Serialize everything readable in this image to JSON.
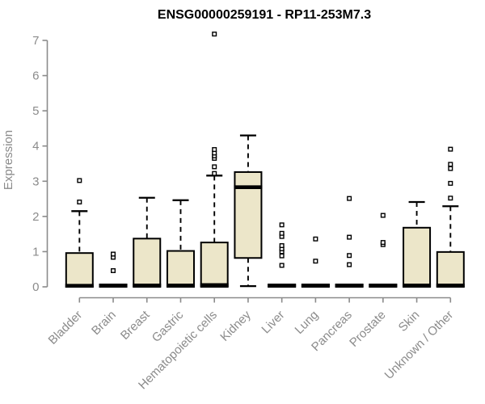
{
  "page": {
    "background": "#ffffff",
    "description": "Box plot of gene expression by tissue"
  },
  "chart_data": {
    "type": "box",
    "title": "ENSG00000259191 - RP11-253M7.3",
    "xlabel": "",
    "ylabel": "Expression",
    "ylim": [
      0,
      7
    ],
    "yticks": [
      0,
      1,
      2,
      3,
      4,
      5,
      6,
      7
    ],
    "grid": false,
    "legend": false,
    "whisker_style": "dashed",
    "outlier_marker": "open-square",
    "colors": {
      "box_fill": "#ece6c9",
      "box_border": "#000000",
      "median": "#000000",
      "whisker": "#000000",
      "axis": "#8b8b8b",
      "tick_text": "#8b8b8b",
      "title_text": "#000000",
      "outlier_fill": "#ffffff",
      "outlier_stroke": "#000000"
    },
    "categories": [
      "Bladder",
      "Brain",
      "Breast",
      "Gastric",
      "Hematopoietic cells",
      "Kidney",
      "Liver",
      "Lung",
      "Pancreas",
      "Prostate",
      "Skin",
      "Unknown / Other"
    ],
    "boxes": [
      {
        "category": "Bladder",
        "low": 0,
        "q1": 0,
        "median": 0.03,
        "q3": 0.96,
        "high": 2.15,
        "outliers": [
          2.41,
          3.02
        ]
      },
      {
        "category": "Brain",
        "low": 0,
        "q1": 0,
        "median": 0.04,
        "q3": 0.06,
        "high": 0.06,
        "outliers": [
          0.46,
          0.84,
          0.93
        ]
      },
      {
        "category": "Breast",
        "low": 0,
        "q1": 0,
        "median": 0.04,
        "q3": 1.37,
        "high": 2.53,
        "outliers": []
      },
      {
        "category": "Gastric",
        "low": 0,
        "q1": 0,
        "median": 0.04,
        "q3": 1.02,
        "high": 2.46,
        "outliers": []
      },
      {
        "category": "Hematopoietic cells",
        "low": 0,
        "q1": 0,
        "median": 0.05,
        "q3": 1.26,
        "high": 3.16,
        "outliers": [
          3.22,
          3.41,
          3.65,
          3.72,
          3.8,
          3.9,
          7.18
        ]
      },
      {
        "category": "Kidney",
        "low": 0.02,
        "q1": 0.82,
        "median": 2.83,
        "q3": 3.26,
        "high": 4.3,
        "outliers": []
      },
      {
        "category": "Liver",
        "low": 0,
        "q1": 0,
        "median": 0.04,
        "q3": 0.06,
        "high": 0.06,
        "outliers": [
          0.61,
          0.88,
          1.0,
          1.08,
          1.17,
          1.43,
          1.52,
          1.76
        ]
      },
      {
        "category": "Lung",
        "low": 0,
        "q1": 0,
        "median": 0.04,
        "q3": 0.06,
        "high": 0.06,
        "outliers": [
          0.73,
          1.36
        ]
      },
      {
        "category": "Pancreas",
        "low": 0,
        "q1": 0,
        "median": 0.04,
        "q3": 0.06,
        "high": 0.06,
        "outliers": [
          0.63,
          0.89,
          1.41,
          2.51
        ]
      },
      {
        "category": "Prostate",
        "low": 0,
        "q1": 0,
        "median": 0.04,
        "q3": 0.06,
        "high": 0.06,
        "outliers": [
          1.2,
          1.26,
          2.03
        ]
      },
      {
        "category": "Skin",
        "low": 0,
        "q1": 0,
        "median": 0.04,
        "q3": 1.68,
        "high": 2.41,
        "outliers": []
      },
      {
        "category": "Unknown / Other",
        "low": 0,
        "q1": 0,
        "median": 0.04,
        "q3": 0.99,
        "high": 2.29,
        "outliers": [
          2.52,
          2.94,
          3.36,
          3.48,
          3.91
        ]
      }
    ]
  }
}
